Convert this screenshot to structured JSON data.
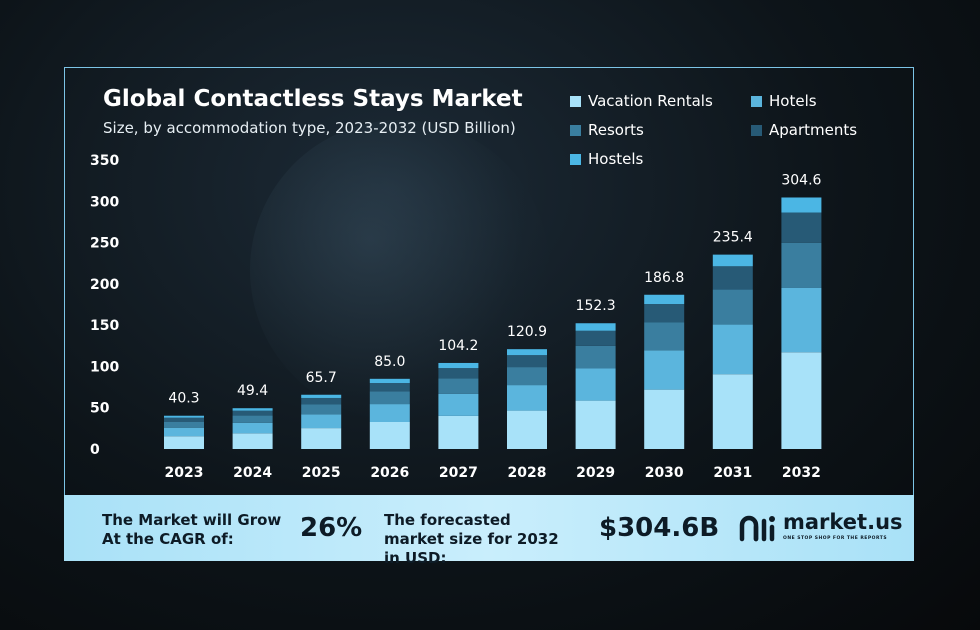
{
  "colors": {
    "vacation_rentals": "#a8e2f9",
    "hotels": "#5bb5dd",
    "resorts": "#3a7e9f",
    "apartments": "#275a76",
    "hostels": "#4bb6e4",
    "frame": "#7cc4e6",
    "banner": "#b8e8fa"
  },
  "chart_data": {
    "type": "bar",
    "stacked": true,
    "title": "Global Contactless Stays Market",
    "subtitle": "Size, by accommodation type, 2023-2032 (USD Billion)",
    "categories": [
      "2023",
      "2024",
      "2025",
      "2026",
      "2027",
      "2028",
      "2029",
      "2030",
      "2031",
      "2032"
    ],
    "totals": [
      40.3,
      49.4,
      65.7,
      85.0,
      104.2,
      120.9,
      152.3,
      186.8,
      235.4,
      304.6
    ],
    "total_labels": [
      "40.3",
      "49.4",
      "65.7",
      "85.0",
      "104.2",
      "120.9",
      "152.3",
      "186.8",
      "235.4",
      "304.6"
    ],
    "series": [
      {
        "name": "Vacation Rentals",
        "values": [
          15.5,
          19.0,
          25.3,
          32.7,
          40.1,
          46.5,
          58.6,
          71.9,
          90.6,
          117.2
        ]
      },
      {
        "name": "Hotels",
        "values": [
          10.3,
          12.6,
          16.8,
          21.7,
          26.6,
          30.9,
          38.9,
          47.7,
          60.1,
          77.8
        ]
      },
      {
        "name": "Resorts",
        "values": [
          7.3,
          8.9,
          11.8,
          15.3,
          18.8,
          21.8,
          27.4,
          33.6,
          42.4,
          54.8
        ]
      },
      {
        "name": "Apartments",
        "values": [
          4.8,
          5.9,
          7.9,
          10.2,
          12.5,
          14.5,
          18.3,
          22.4,
          28.2,
          36.6
        ]
      },
      {
        "name": "Hostels",
        "values": [
          2.4,
          3.0,
          3.9,
          5.1,
          6.2,
          7.2,
          9.1,
          11.2,
          14.1,
          18.2
        ]
      }
    ],
    "yticks": [
      "350",
      "300",
      "250",
      "200",
      "150",
      "100",
      "50",
      "0"
    ],
    "ylim": [
      0,
      350
    ],
    "legend_position": "top-right",
    "grid": false
  },
  "legend": {
    "vacation_rentals": "Vacation Rentals",
    "hotels": "Hotels",
    "resorts": "Resorts",
    "apartments": "Apartments",
    "hostels": "Hostels"
  },
  "banner": {
    "cagr_label": "The Market will Grow At the CAGR of:",
    "cagr_value": "26%",
    "forecast_label": "The forecasted market size for 2032 in USD:",
    "forecast_value": "$304.6B",
    "logo_text": "market.us",
    "logo_tagline": "ONE STOP SHOP FOR THE REPORTS"
  }
}
